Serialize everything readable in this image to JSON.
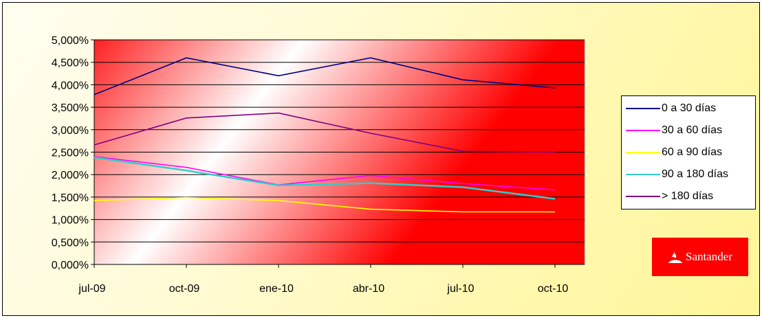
{
  "chart_data": {
    "type": "line",
    "title": "",
    "xlabel": "",
    "ylabel": "",
    "categories": [
      "jul-09",
      "oct-09",
      "ene-10",
      "abr-10",
      "jul-10",
      "oct-10"
    ],
    "ylim": [
      0,
      5
    ],
    "yticks": [
      "0,000%",
      "0,500%",
      "1,000%",
      "1,500%",
      "2,000%",
      "2,500%",
      "3,000%",
      "3,500%",
      "4,000%",
      "4,500%",
      "5,000%"
    ],
    "grid": true,
    "legend_position": "right",
    "series": [
      {
        "name": "0 a 30 días",
        "color": "#000080",
        "values": [
          3.78,
          4.6,
          4.2,
          4.6,
          4.11,
          3.93
        ]
      },
      {
        "name": "30 a 60 días",
        "color": "#ff00ff",
        "values": [
          2.4,
          2.16,
          1.77,
          1.98,
          1.8,
          1.66
        ]
      },
      {
        "name": "60 a 90 días",
        "color": "#ffff00",
        "values": [
          1.42,
          1.49,
          1.42,
          1.23,
          1.17,
          1.17
        ]
      },
      {
        "name": "90 a 180 días",
        "color": "#33cccc",
        "values": [
          2.38,
          2.09,
          1.76,
          1.81,
          1.72,
          1.46
        ]
      },
      {
        "name": "> 180 días",
        "color": "#800080",
        "values": [
          2.66,
          3.26,
          3.37,
          2.92,
          2.52,
          2.5
        ]
      }
    ]
  },
  "logo": {
    "text": "Santander",
    "color": "#ff0000"
  }
}
